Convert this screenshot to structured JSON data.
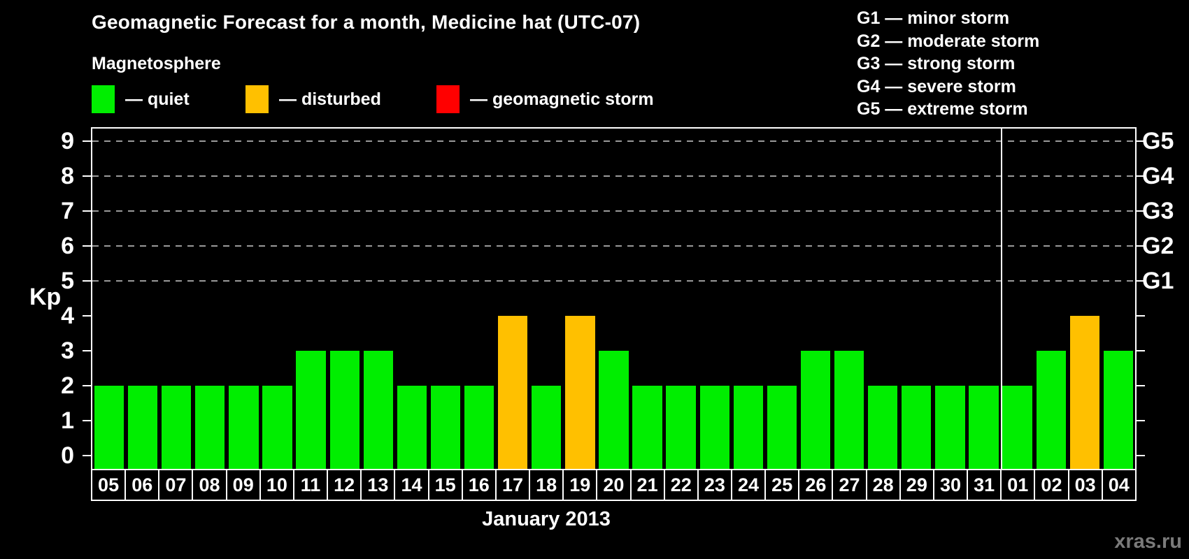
{
  "header": {
    "title": "Geomagnetic Forecast for a month, Medicine hat (UTC-07)",
    "subtitle": "Magnetosphere"
  },
  "legend": {
    "items": [
      {
        "status": "quiet",
        "label": "— quiet",
        "color": "#00ee00"
      },
      {
        "status": "disturbed",
        "label": "— disturbed",
        "color": "#ffc000"
      },
      {
        "status": "storm",
        "label": "— geomagnetic storm",
        "color": "#ff0000"
      }
    ]
  },
  "g_legend": {
    "lines": [
      "G1 — minor storm",
      "G2 — moderate storm",
      "G3 — strong storm",
      "G4 — severe storm",
      "G5 — extreme storm"
    ]
  },
  "axes": {
    "y_title": "Kp",
    "y_ticks": [
      0,
      1,
      2,
      3,
      4,
      5,
      6,
      7,
      8,
      9
    ],
    "right_labels": [
      {
        "kp": 5,
        "label": "G1"
      },
      {
        "kp": 6,
        "label": "G2"
      },
      {
        "kp": 7,
        "label": "G3"
      },
      {
        "kp": 8,
        "label": "G4"
      },
      {
        "kp": 9,
        "label": "G5"
      }
    ],
    "x_title": "January 2013"
  },
  "watermark": "xras.ru",
  "colors": {
    "background": "#000000",
    "axis": "#ffffff",
    "grid": "#9a9a9a",
    "quiet": "#00ee00",
    "disturbed": "#ffc000",
    "storm": "#ff0000",
    "watermark": "#7a7a7a"
  },
  "chart_data": {
    "type": "bar",
    "title": "Geomagnetic Forecast for a month, Medicine hat (UTC-07)",
    "xlabel": "January 2013",
    "ylabel": "Kp",
    "ylim": [
      0,
      9.5
    ],
    "grid": "dashed horizontal lines at Kp 5-9 only (storm thresholds G1-G5)",
    "legend_position": "top-left",
    "categories": [
      "05",
      "06",
      "07",
      "08",
      "09",
      "10",
      "11",
      "12",
      "13",
      "14",
      "15",
      "16",
      "17",
      "18",
      "19",
      "20",
      "21",
      "22",
      "23",
      "24",
      "25",
      "26",
      "27",
      "28",
      "29",
      "30",
      "31",
      "01",
      "02",
      "03",
      "04"
    ],
    "values": [
      2,
      2,
      2,
      2,
      2,
      2,
      3,
      3,
      3,
      2,
      2,
      2,
      4,
      2,
      4,
      3,
      2,
      2,
      2,
      2,
      2,
      3,
      3,
      2,
      2,
      2,
      2,
      2,
      3,
      4,
      3
    ],
    "statuses": [
      "quiet",
      "quiet",
      "quiet",
      "quiet",
      "quiet",
      "quiet",
      "quiet",
      "quiet",
      "quiet",
      "quiet",
      "quiet",
      "quiet",
      "disturbed",
      "quiet",
      "disturbed",
      "quiet",
      "quiet",
      "quiet",
      "quiet",
      "quiet",
      "quiet",
      "quiet",
      "quiet",
      "quiet",
      "quiet",
      "quiet",
      "quiet",
      "quiet",
      "quiet",
      "disturbed",
      "quiet"
    ],
    "month_boundary_after_index": 26,
    "right_axis_labels": {
      "5": "G1",
      "6": "G2",
      "7": "G3",
      "8": "G4",
      "9": "G5"
    }
  }
}
